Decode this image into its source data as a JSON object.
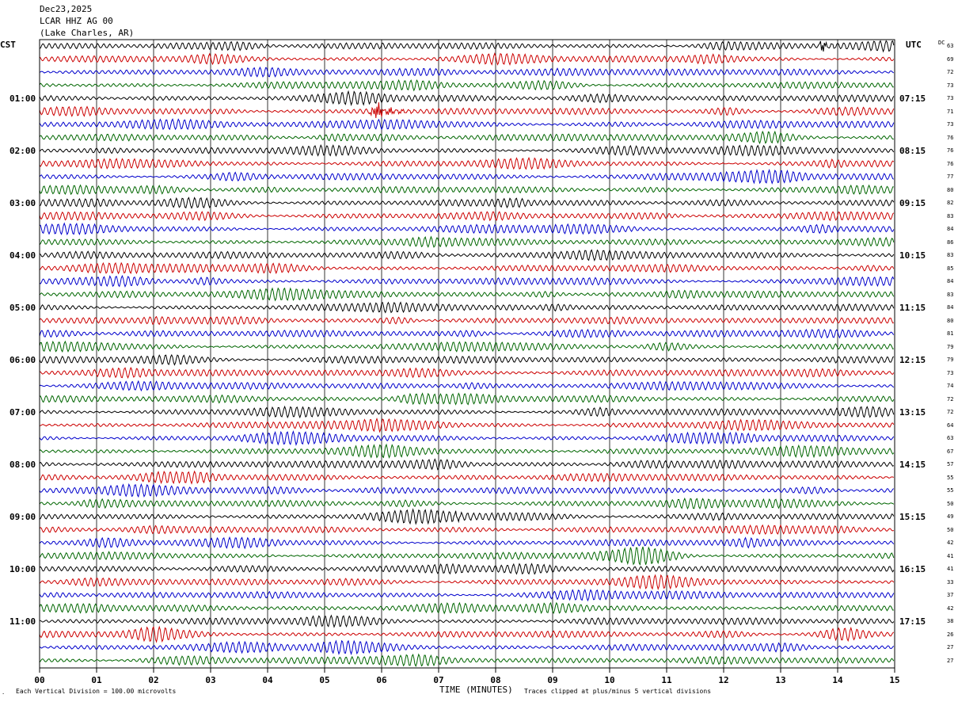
{
  "header": {
    "date": "Dec23,2025",
    "station": "LCAR HHZ AG 00",
    "location": "(Lake Charles, AR)"
  },
  "left_tz": "CST",
  "right_tz": "UTC",
  "dc_label": "DC",
  "footer": {
    "scale_note": "Each Vertical Division =  100.00 microvolts",
    "x_title": "TIME (MINUTES)",
    "clip_note": "Traces clipped at plus/minus 5 vertical divisions"
  },
  "colors": {
    "traces": [
      "#000000",
      "#cc0000",
      "#0000cc",
      "#006600"
    ],
    "grid": "#000000"
  },
  "chart_data": {
    "type": "line",
    "xlabel": "TIME (MINUTES)",
    "xlim": [
      0,
      15
    ],
    "x_ticks": [
      "00",
      "01",
      "02",
      "03",
      "04",
      "05",
      "06",
      "07",
      "08",
      "09",
      "10",
      "11",
      "12",
      "13",
      "14",
      "15"
    ],
    "row_count": 48,
    "rows_per_hour": 4,
    "minutes_per_row": 15,
    "left_hour_labels": [
      "01:00",
      "02:00",
      "03:00",
      "04:00",
      "05:00",
      "06:00",
      "07:00",
      "08:00",
      "09:00",
      "10:00",
      "11:00"
    ],
    "right_hour_labels": [
      "07:15",
      "08:15",
      "09:15",
      "10:15",
      "11:15",
      "12:15",
      "13:15",
      "14:15",
      "15:15",
      "16:15",
      "17:15"
    ],
    "dc_offsets": [
      "63",
      "69",
      "72",
      "73",
      "73",
      "71",
      "73",
      "76",
      "76",
      "76",
      "77",
      "80",
      "82",
      "83",
      "84",
      "86",
      "83",
      "85",
      "84",
      "83",
      "84",
      "80",
      "81",
      "79",
      "79",
      "73",
      "74",
      "72",
      "72",
      "64",
      "63",
      "67",
      "57",
      "55",
      "55",
      "50",
      "49",
      "50",
      "42",
      "41",
      "41",
      "33",
      "37",
      "42",
      "38",
      "26",
      "27",
      "27"
    ],
    "events": [
      {
        "row": 5,
        "minute": 5.8,
        "amplitude": "large"
      },
      {
        "row": 36,
        "minute": 7.2,
        "amplitude": "small"
      },
      {
        "row": 0,
        "minute": 13.7,
        "amplitude": "small"
      }
    ]
  }
}
